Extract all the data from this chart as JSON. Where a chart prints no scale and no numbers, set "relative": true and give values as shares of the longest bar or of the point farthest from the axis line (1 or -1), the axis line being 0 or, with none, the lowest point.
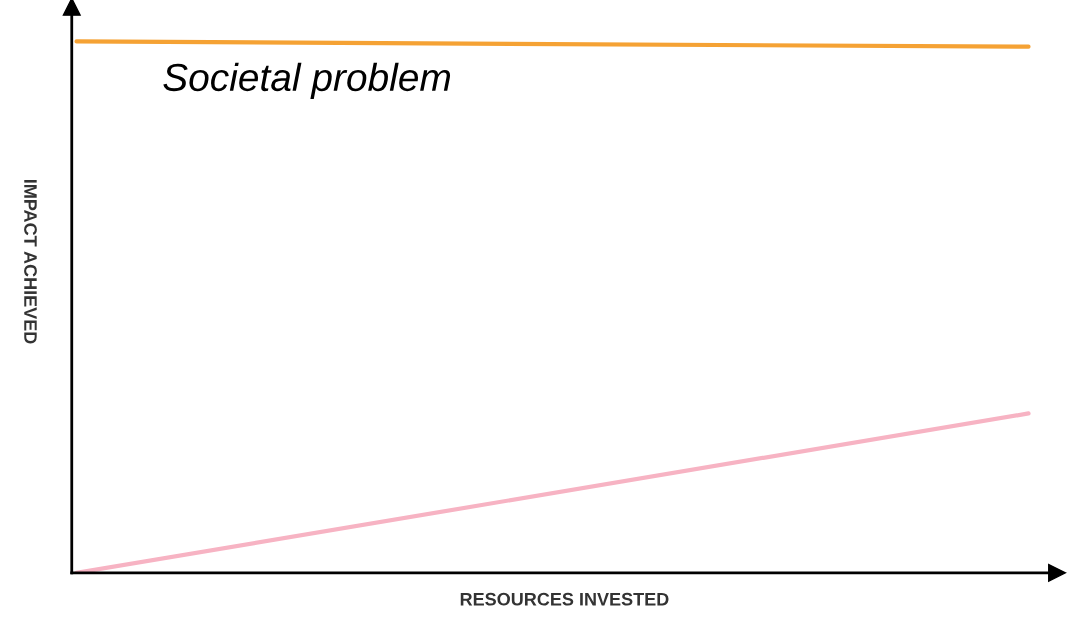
{
  "chart_data": {
    "type": "line",
    "relative": true,
    "xlabel": "RESOURCES INVESTED",
    "ylabel": "IMPACT ACHIEVED",
    "categories": [
      null,
      null
    ],
    "legend": false,
    "grid": false,
    "tick_labels": false,
    "marker": "none",
    "line_style": "solid",
    "series": [
      {
        "name": "Societal problem",
        "color": "#f5a234",
        "values": [
          1,
          0.99
        ]
      },
      {
        "color": "#f7b3c3",
        "values": [
          0,
          0.3
        ]
      }
    ]
  }
}
